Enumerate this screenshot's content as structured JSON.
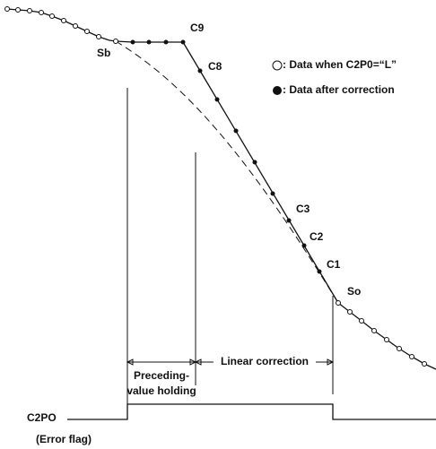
{
  "labels": {
    "sb": "Sb",
    "c9": "C9",
    "c8": "C8",
    "c3": "C3",
    "c2": "C2",
    "c1": "C1",
    "so": "So"
  },
  "legend": {
    "open": ": Data when C2P0=“L”",
    "filled": ": Data after correction"
  },
  "intervals": {
    "holding_1": "Preceding-",
    "holding_2": "value holding",
    "linear": "Linear correction"
  },
  "signal": {
    "name": "C2PO",
    "note": "(Error flag)"
  }
}
